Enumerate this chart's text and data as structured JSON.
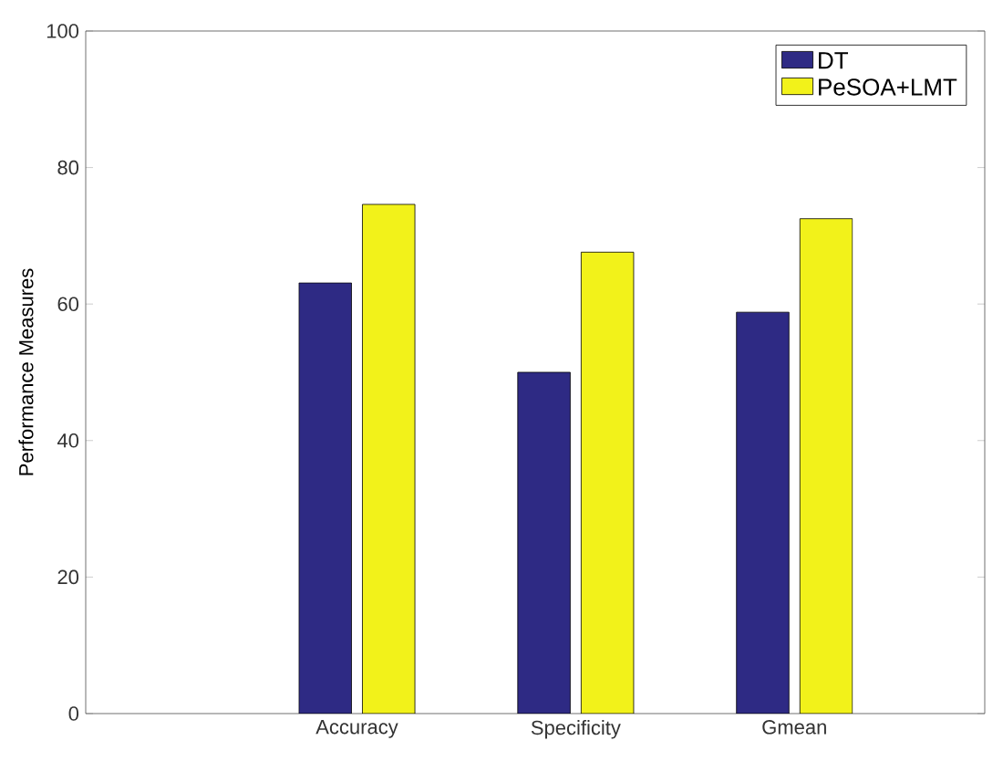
{
  "chart_data": {
    "type": "bar",
    "ylabel": "Performance Measures",
    "categories": [
      "Accuracy",
      "Specificity",
      "Gmean"
    ],
    "series": [
      {
        "name": "DT",
        "color": "#2e2a84",
        "values": [
          63.1,
          50,
          58.8
        ]
      },
      {
        "name": "PeSOA+LMT",
        "color": "#f2f21a",
        "values": [
          74.6,
          67.6,
          72.5
        ]
      }
    ],
    "ylim": [
      0,
      100
    ],
    "yticks": [
      0,
      20,
      40,
      60,
      80,
      100
    ],
    "grid": false,
    "legend": "top right"
  }
}
